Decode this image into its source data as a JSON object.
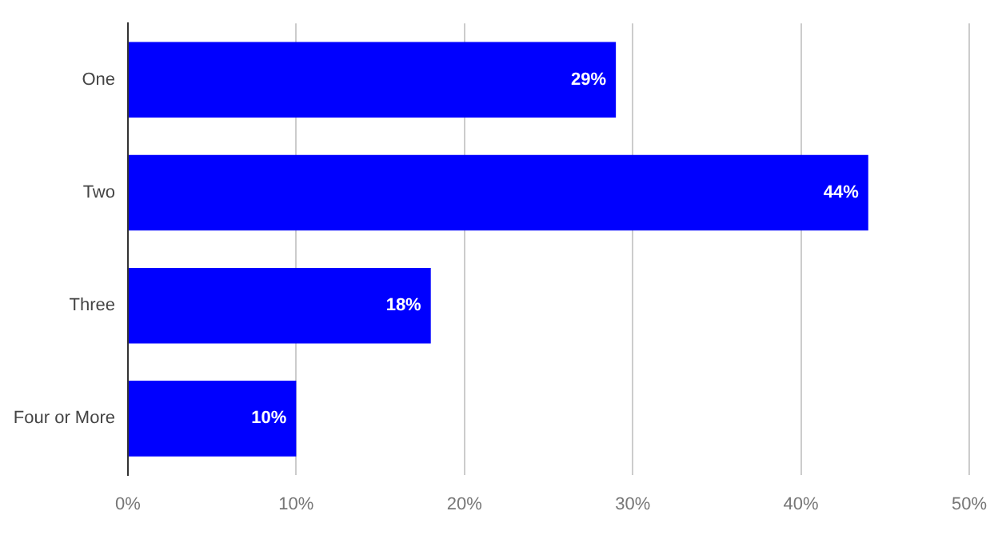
{
  "chart_data": {
    "type": "bar",
    "orientation": "horizontal",
    "categories": [
      "One",
      "Two",
      "Three",
      "Four or More"
    ],
    "values": [
      29,
      44,
      18,
      10
    ],
    "value_labels": [
      "29%",
      "44%",
      "18%",
      "10%"
    ],
    "color": "#0000ff",
    "xlim": [
      0,
      50
    ],
    "xticks": [
      {
        "value": 0,
        "label": "0%"
      },
      {
        "value": 10,
        "label": "10%"
      },
      {
        "value": 20,
        "label": "20%"
      },
      {
        "value": 30,
        "label": "30%"
      },
      {
        "value": 40,
        "label": "40%"
      },
      {
        "value": 50,
        "label": "50%"
      }
    ],
    "grid": "x",
    "legend": false
  }
}
